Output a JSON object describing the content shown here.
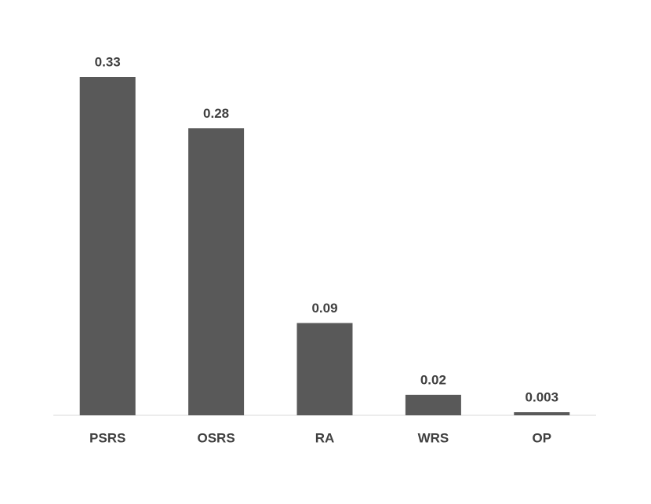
{
  "chart_data": {
    "type": "bar",
    "categories": [
      "PSRS",
      "OSRS",
      "RA",
      "WRS",
      "OP"
    ],
    "values": [
      0.33,
      0.28,
      0.09,
      0.02,
      0.003
    ],
    "color": "#595959"
  }
}
